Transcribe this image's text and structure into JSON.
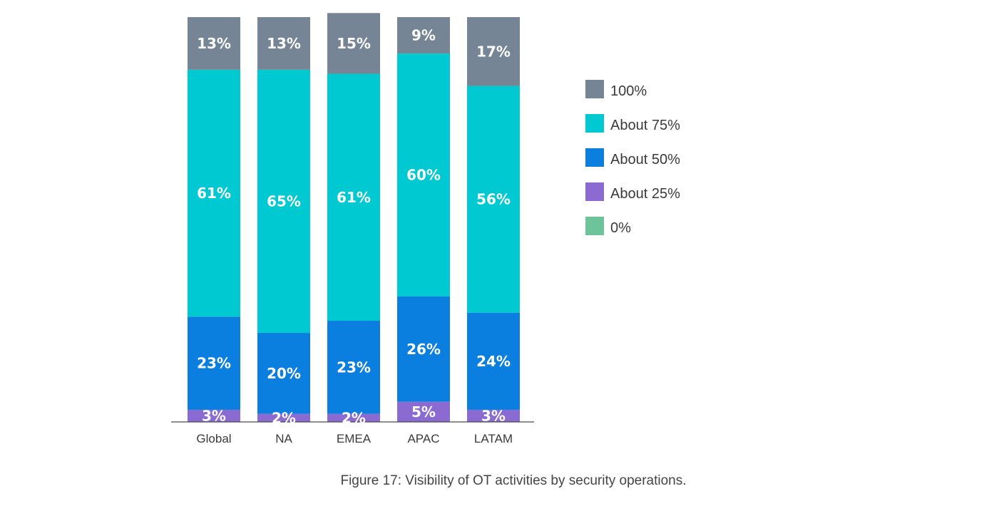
{
  "chart_data": {
    "type": "bar",
    "stacked": true,
    "categories": [
      "Global",
      "NA",
      "EMEA",
      "APAC",
      "LATAM"
    ],
    "series": [
      {
        "name": "About 25%",
        "color": "#8b6ad1",
        "values": [
          3,
          2,
          2,
          5,
          3
        ]
      },
      {
        "name": "About 50%",
        "color": "#0b7fe0",
        "values": [
          23,
          20,
          23,
          26,
          24
        ]
      },
      {
        "name": "About 75%",
        "color": "#00c9d1",
        "values": [
          61,
          65,
          61,
          60,
          56
        ]
      },
      {
        "name": "100%",
        "color": "#758595",
        "values": [
          13,
          13,
          15,
          9,
          17
        ]
      }
    ],
    "legend": {
      "placement": "right",
      "items": [
        {
          "label": "100%",
          "color": "#758595"
        },
        {
          "label": "About 75%",
          "color": "#00c9d1"
        },
        {
          "label": "About 50%",
          "color": "#0b7fe0"
        },
        {
          "label": "About 25%",
          "color": "#8b6ad1"
        },
        {
          "label": "0%",
          "color": "#6ec49a"
        }
      ]
    },
    "value_labels": [
      [
        "3%",
        "23%",
        "61%",
        "13%"
      ],
      [
        "2%",
        "20%",
        "65%",
        "13%"
      ],
      [
        "2%",
        "23%",
        "61%",
        "15%"
      ],
      [
        "5%",
        "26%",
        "60%",
        "9%"
      ],
      [
        "3%",
        "24%",
        "56%",
        "17%"
      ]
    ],
    "ylim": [
      0,
      100
    ],
    "grid": false
  },
  "caption": "Figure 17: Visibility of OT activities by security operations."
}
